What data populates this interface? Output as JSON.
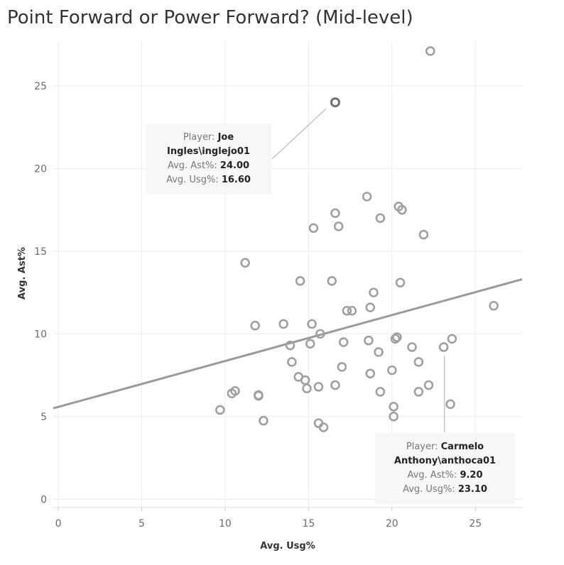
{
  "title": "Point Forward or Power Forward? (Mid-level)",
  "chart_data": {
    "type": "scatter",
    "title": "Point Forward or Power Forward? (Mid-level)",
    "xlabel": "Avg. Usg%",
    "ylabel": "Avg. Ast%",
    "xlim": [
      -0.3,
      27.8
    ],
    "ylim": [
      -0.5,
      27.7
    ],
    "xticks": [
      0,
      5,
      10,
      15,
      20,
      25
    ],
    "yticks": [
      0,
      5,
      10,
      15,
      20,
      25
    ],
    "grid": true,
    "trend_line": {
      "x": [
        -0.3,
        27.8
      ],
      "y": [
        5.5,
        13.3
      ]
    },
    "points": [
      {
        "x": 9.7,
        "y": 5.4
      },
      {
        "x": 10.4,
        "y": 6.4
      },
      {
        "x": 10.6,
        "y": 6.55
      },
      {
        "x": 11.2,
        "y": 14.3
      },
      {
        "x": 11.8,
        "y": 10.5
      },
      {
        "x": 12.0,
        "y": 6.3
      },
      {
        "x": 12.0,
        "y": 6.25
      },
      {
        "x": 12.3,
        "y": 4.75
      },
      {
        "x": 13.5,
        "y": 10.6
      },
      {
        "x": 13.9,
        "y": 9.3
      },
      {
        "x": 14.0,
        "y": 8.3
      },
      {
        "x": 14.4,
        "y": 7.4
      },
      {
        "x": 14.5,
        "y": 13.2
      },
      {
        "x": 14.8,
        "y": 7.2
      },
      {
        "x": 14.9,
        "y": 6.7
      },
      {
        "x": 15.1,
        "y": 9.4
      },
      {
        "x": 15.2,
        "y": 10.6
      },
      {
        "x": 15.3,
        "y": 16.4
      },
      {
        "x": 15.6,
        "y": 4.6
      },
      {
        "x": 15.6,
        "y": 6.8
      },
      {
        "x": 15.7,
        "y": 10.0
      },
      {
        "x": 15.9,
        "y": 4.35
      },
      {
        "x": 16.4,
        "y": 13.2
      },
      {
        "x": 16.6,
        "y": 6.9
      },
      {
        "x": 16.6,
        "y": 17.3
      },
      {
        "x": 16.6,
        "y": 24.0
      },
      {
        "x": 16.8,
        "y": 16.5
      },
      {
        "x": 17.0,
        "y": 8.0
      },
      {
        "x": 17.1,
        "y": 9.5
      },
      {
        "x": 17.3,
        "y": 11.4
      },
      {
        "x": 17.6,
        "y": 11.4
      },
      {
        "x": 18.5,
        "y": 18.3
      },
      {
        "x": 18.6,
        "y": 9.6
      },
      {
        "x": 18.7,
        "y": 11.6
      },
      {
        "x": 18.7,
        "y": 7.6
      },
      {
        "x": 18.9,
        "y": 12.5
      },
      {
        "x": 19.2,
        "y": 8.9
      },
      {
        "x": 19.3,
        "y": 17.0
      },
      {
        "x": 19.3,
        "y": 6.5
      },
      {
        "x": 20.0,
        "y": 7.8
      },
      {
        "x": 20.1,
        "y": 5.6
      },
      {
        "x": 20.1,
        "y": 5.0
      },
      {
        "x": 20.2,
        "y": 9.7
      },
      {
        "x": 20.3,
        "y": 9.8
      },
      {
        "x": 20.4,
        "y": 17.7
      },
      {
        "x": 20.5,
        "y": 13.1
      },
      {
        "x": 20.6,
        "y": 17.5
      },
      {
        "x": 21.2,
        "y": 9.2
      },
      {
        "x": 21.6,
        "y": 8.3
      },
      {
        "x": 21.6,
        "y": 6.5
      },
      {
        "x": 21.9,
        "y": 16.0
      },
      {
        "x": 22.2,
        "y": 6.9
      },
      {
        "x": 22.3,
        "y": 27.1
      },
      {
        "x": 23.1,
        "y": 9.2
      },
      {
        "x": 23.5,
        "y": 5.75
      },
      {
        "x": 23.6,
        "y": 9.7
      },
      {
        "x": 26.1,
        "y": 11.7
      }
    ],
    "annotations": [
      {
        "target": {
          "x": 16.6,
          "y": 24.0
        },
        "lines": [
          {
            "label": "Player: ",
            "value": "Joe"
          },
          {
            "label": "",
            "value": "Ingles\\inglejo01"
          },
          {
            "label": "Avg. Ast%: ",
            "value": "24.00"
          },
          {
            "label": "Avg. Usg%: ",
            "value": "16.60"
          }
        ]
      },
      {
        "target": {
          "x": 23.1,
          "y": 9.2
        },
        "lines": [
          {
            "label": "Player: ",
            "value": "Carmelo"
          },
          {
            "label": "",
            "value": "Anthony\\anthoca01"
          },
          {
            "label": "Avg. Ast%: ",
            "value": "9.20"
          },
          {
            "label": "Avg. Usg%: ",
            "value": "23.10"
          }
        ]
      }
    ]
  },
  "colors": {
    "marker": "#a0a0a0",
    "marker_highlight": "#707070",
    "trend": "#9a9a9a",
    "grid": "#ececec",
    "tick_text": "#6b6b6b"
  }
}
